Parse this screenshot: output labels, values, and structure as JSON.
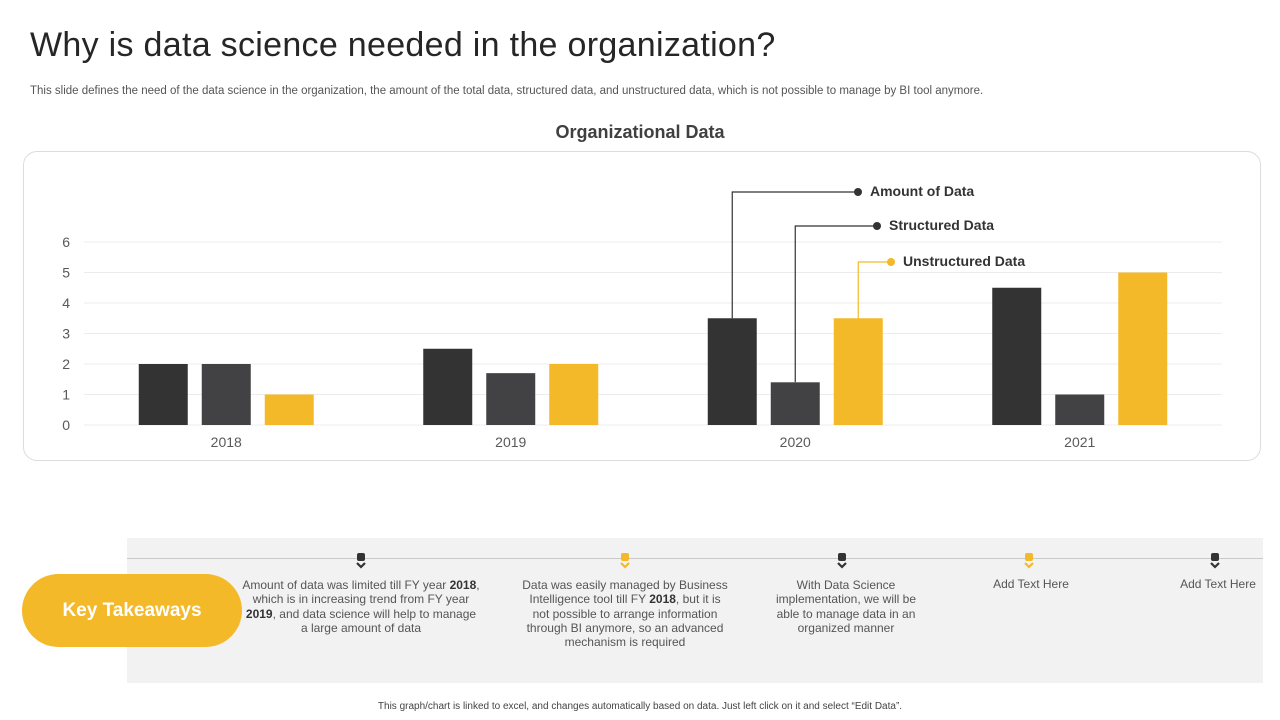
{
  "slide": {
    "title": "Why is data science needed in the organization?",
    "subtitle": "This slide defines the need of the data science in the organization, the amount of the total data, structured data, and unstructured data, which is not possible to manage by BI tool anymore.",
    "footer": "This graph/chart is linked to excel, and changes automatically based on data. Just left click on it and select “Edit Data”."
  },
  "chart_data": {
    "type": "bar",
    "title": "Organizational  Data",
    "xlabel": "",
    "ylabel": "",
    "categories": [
      "2018",
      "2019",
      "2020",
      "2021"
    ],
    "series": [
      {
        "name": "Amount of Data",
        "values": [
          2,
          2.5,
          3.5,
          4.5
        ],
        "color": "#333333"
      },
      {
        "name": "Structured  Data",
        "values": [
          2,
          1.7,
          1.4,
          1
        ],
        "color": "#424244"
      },
      {
        "name": "Unstructured Data",
        "values": [
          1,
          2,
          3.5,
          5
        ],
        "color": "#f3b929"
      }
    ],
    "ylim": [
      0,
      6
    ],
    "yticks": [
      0,
      1,
      2,
      3,
      4,
      5,
      6
    ],
    "grid": true,
    "legend": "callout labels attached to 2020 bars, top-right"
  },
  "takeaways": {
    "label": "Key Takeaways",
    "pill_color": "#f3b929",
    "items": [
      {
        "marker_color": "#333333",
        "parts": [
          "Amount of data was limited till FY year ",
          "2018",
          ", which is in increasing trend from FY year ",
          "2019",
          ", and data science will help to manage a large amount of data"
        ]
      },
      {
        "marker_color": "#f3b929",
        "parts": [
          "Data was easily managed by Business Intelligence tool till FY ",
          "2018",
          ", but it is not possible to arrange information through BI anymore, so an advanced mechanism is required"
        ]
      },
      {
        "marker_color": "#333333",
        "parts": [
          "With Data Science implementation, we will be able to manage data in an organized manner"
        ]
      },
      {
        "marker_color": "#f3b929",
        "parts": [
          "Add Text Here"
        ]
      },
      {
        "marker_color": "#333333",
        "parts": [
          "Add Text Here"
        ]
      }
    ]
  }
}
